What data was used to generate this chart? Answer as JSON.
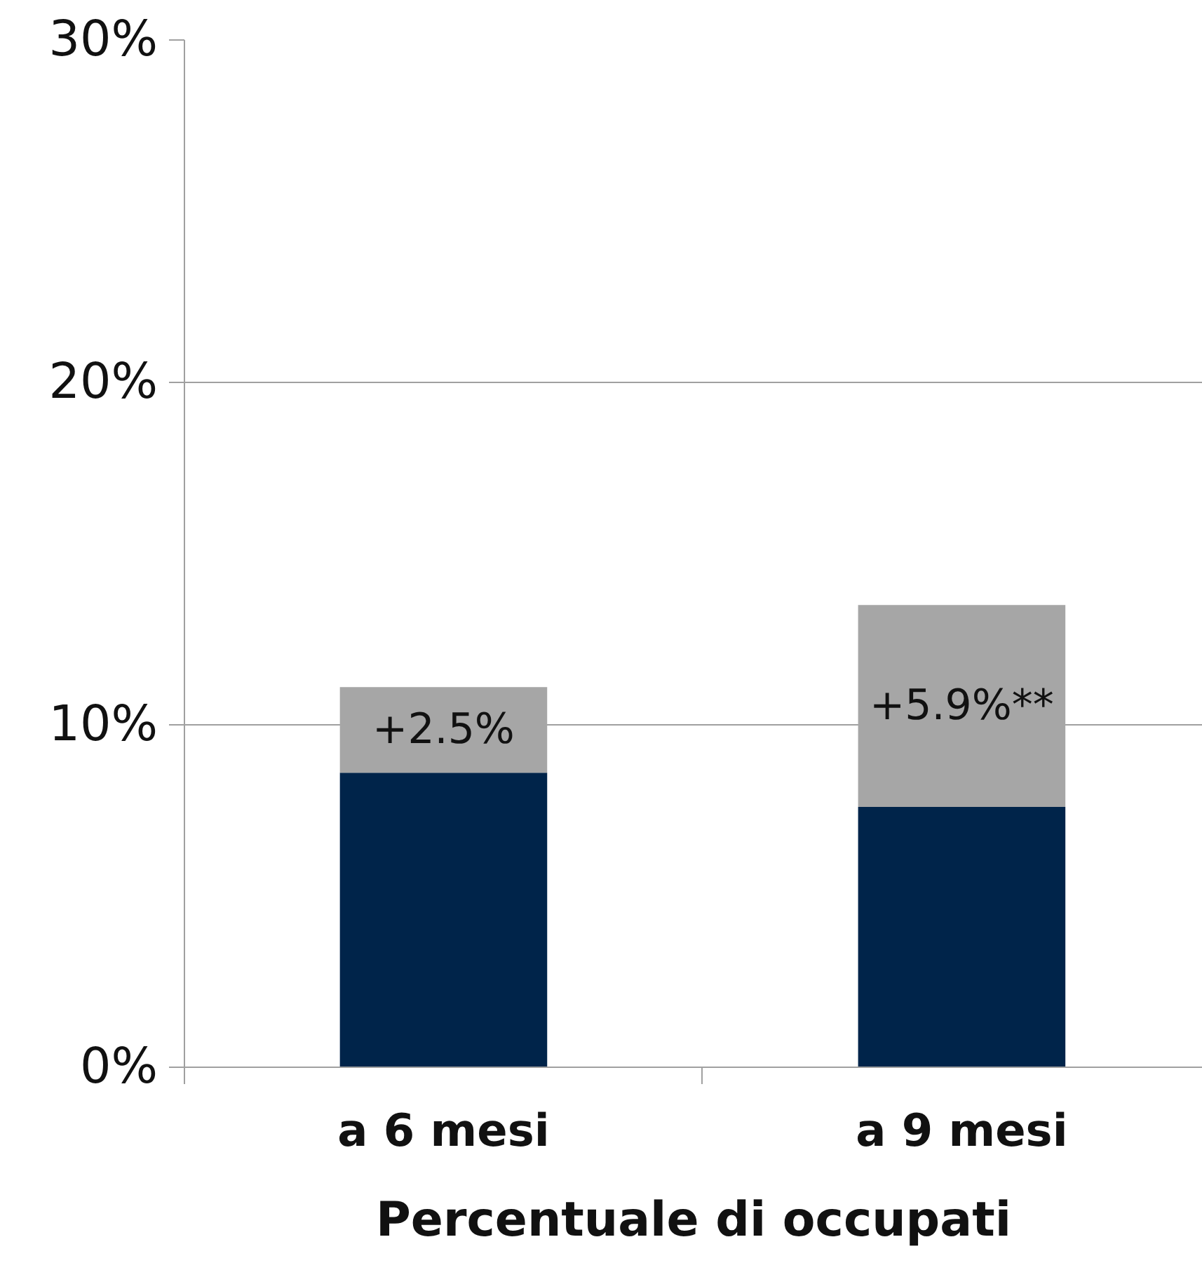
{
  "chart_data": {
    "type": "bar",
    "xlabel": "Percentuale di occupati",
    "categories": [
      "a 6 mesi",
      "a 9 mesi"
    ],
    "stacked": true,
    "series": [
      {
        "color": "#00244a",
        "values": [
          8.6,
          7.6
        ]
      },
      {
        "color": "#a6a6a6",
        "values": [
          2.5,
          5.9
        ],
        "value_labels": [
          "+2.5%",
          "+5.9%**"
        ]
      }
    ],
    "ylim": [
      0,
      30
    ],
    "yticks": [
      {
        "value": 0,
        "label": "0%"
      },
      {
        "value": 10,
        "label": "10%"
      },
      {
        "value": 20,
        "label": "20%"
      },
      {
        "value": 30,
        "label": "30%"
      }
    ],
    "grid": "y"
  }
}
